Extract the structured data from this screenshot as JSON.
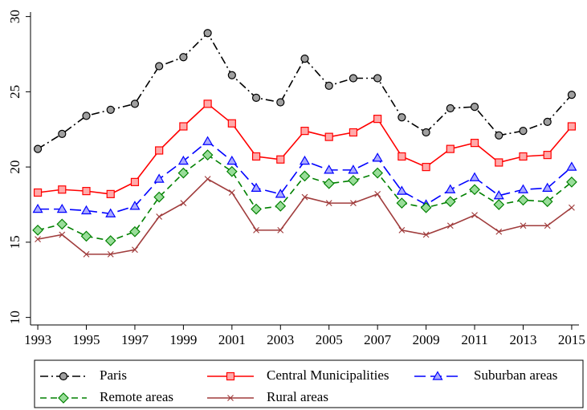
{
  "chart_data": {
    "type": "line",
    "x": [
      1993,
      1994,
      1995,
      1996,
      1997,
      1998,
      1999,
      2000,
      2001,
      2002,
      2003,
      2004,
      2005,
      2006,
      2007,
      2008,
      2009,
      2010,
      2011,
      2012,
      2013,
      2014,
      2015
    ],
    "xlim": [
      1992.7,
      2015.3
    ],
    "xticks": [
      1993,
      1995,
      1997,
      1999,
      2001,
      2003,
      2005,
      2007,
      2009,
      2011,
      2013,
      2015
    ],
    "ylim": [
      9.5,
      30.3
    ],
    "yticks": [
      10,
      15,
      20,
      25,
      30
    ],
    "legend": "bottom",
    "series": [
      {
        "name": "Paris",
        "color": "#000000",
        "marker": "circle",
        "marker_fill": "#a0a0a0",
        "line_style": "dashdot",
        "values": [
          21.2,
          22.2,
          23.4,
          23.8,
          24.2,
          26.7,
          27.3,
          28.9,
          26.1,
          24.6,
          24.3,
          27.2,
          25.4,
          25.9,
          25.9,
          23.3,
          22.3,
          23.9,
          24.0,
          22.1,
          22.4,
          23.0,
          24.8
        ]
      },
      {
        "name": "Central Municipalities",
        "color": "#ff0000",
        "marker": "square",
        "marker_fill": "#ffaaaa",
        "line_style": "solid",
        "values": [
          18.3,
          18.5,
          18.4,
          18.2,
          19.0,
          21.1,
          22.7,
          24.2,
          22.9,
          20.7,
          20.5,
          22.4,
          22.0,
          22.3,
          23.2,
          20.7,
          20.0,
          21.2,
          21.6,
          20.3,
          20.7,
          20.8,
          22.7
        ]
      },
      {
        "name": "Suburban areas",
        "color": "#0000ff",
        "marker": "triangle",
        "marker_fill": "#aaaaff",
        "line_style": "longdash",
        "values": [
          17.2,
          17.2,
          17.1,
          16.9,
          17.4,
          19.2,
          20.4,
          21.7,
          20.4,
          18.6,
          18.2,
          20.4,
          19.8,
          19.8,
          20.6,
          18.4,
          17.5,
          18.5,
          19.3,
          18.1,
          18.5,
          18.6,
          20.0
        ]
      },
      {
        "name": "Remote areas",
        "color": "#008000",
        "marker": "diamond",
        "marker_fill": "#99dd99",
        "line_style": "dash",
        "values": [
          15.8,
          16.2,
          15.4,
          15.1,
          15.7,
          18.0,
          19.6,
          20.8,
          19.7,
          17.2,
          17.4,
          19.4,
          18.9,
          19.1,
          19.6,
          17.6,
          17.3,
          17.7,
          18.5,
          17.5,
          17.8,
          17.7,
          19.0
        ]
      },
      {
        "name": "Rural areas",
        "color": "#a03c3c",
        "marker": "x",
        "marker_fill": "none",
        "line_style": "solid",
        "values": [
          15.2,
          15.5,
          14.2,
          14.2,
          14.5,
          16.7,
          17.6,
          19.2,
          18.3,
          15.8,
          15.8,
          18.0,
          17.6,
          17.6,
          18.2,
          15.8,
          15.5,
          16.1,
          16.8,
          15.7,
          16.1,
          16.1,
          17.3
        ]
      }
    ]
  }
}
